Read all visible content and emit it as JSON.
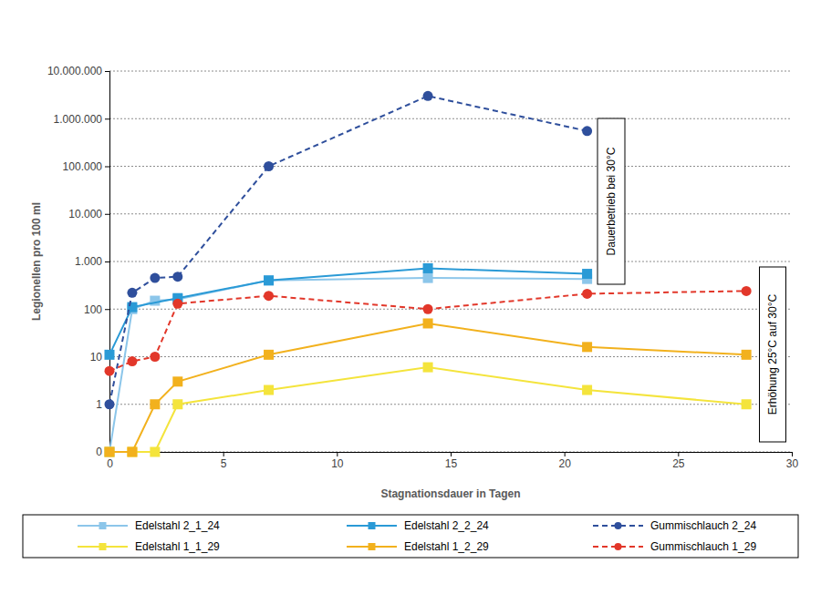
{
  "chart_data": {
    "type": "line",
    "x_label": "Stagnationsdauer in Tagen",
    "y_label": "Legionellen pro 100 ml",
    "log": "y",
    "grid": true,
    "legend": "bottom",
    "xlim": [
      0,
      30
    ],
    "xticks": [
      0,
      5,
      10,
      15,
      20,
      25,
      30
    ],
    "ylim": [
      0,
      10000000
    ],
    "yticks": [
      0,
      1,
      10,
      100,
      {
        "value": 1000,
        "label": "1.000"
      },
      {
        "value": 10000,
        "label": "10.000"
      },
      {
        "value": 100000,
        "label": "100.000"
      },
      {
        "value": 1000000,
        "label": "1.000.000"
      },
      {
        "value": 10000000,
        "label": "10.000.000"
      }
    ],
    "annotations": [
      "Dauerbetrieb bei 30°C",
      "Erhöhung 25°C auf 30°C"
    ],
    "series": [
      {
        "name": "Edelstahl 2_1_24",
        "color": "#8cc6ea",
        "marker": "square",
        "line_style": "solid",
        "x": [
          0,
          1,
          2,
          3,
          7,
          14,
          21
        ],
        "values": [
          0,
          100,
          150,
          160,
          400,
          450,
          430
        ]
      },
      {
        "name": "Edelstahl 2_2_24",
        "color": "#2a9ad6",
        "marker": "square",
        "line_style": "solid",
        "x": [
          0,
          1,
          3,
          7,
          14,
          21
        ],
        "values": [
          11,
          110,
          170,
          400,
          720,
          550
        ]
      },
      {
        "name": "Gummischlauch 2_24",
        "color": "#2f4f9c",
        "marker": "circle",
        "line_style": "dashed",
        "x": [
          0,
          1,
          2,
          3,
          7,
          14,
          21
        ],
        "values": [
          1,
          220,
          450,
          480,
          100000,
          3000000,
          550000
        ]
      },
      {
        "name": "Edelstahl 1_1_29",
        "color": "#f4e43c",
        "marker": "square",
        "line_style": "solid",
        "x": [
          0,
          1,
          2,
          3,
          7,
          14,
          21,
          28
        ],
        "values": [
          0,
          0,
          0,
          1,
          2,
          6,
          2,
          1
        ]
      },
      {
        "name": "Edelstahl 1_2_29",
        "color": "#f2b11d",
        "marker": "square",
        "line_style": "solid",
        "x": [
          0,
          1,
          2,
          3,
          7,
          14,
          21,
          28
        ],
        "values": [
          0,
          0,
          1,
          3,
          11,
          50,
          16,
          11
        ]
      },
      {
        "name": "Gummischlauch 1_29",
        "color": "#e2372a",
        "marker": "circle",
        "line_style": "dashed",
        "x": [
          0,
          1,
          2,
          3,
          7,
          14,
          21,
          28
        ],
        "values": [
          5,
          8,
          10,
          130,
          190,
          100,
          210,
          240
        ]
      }
    ]
  }
}
